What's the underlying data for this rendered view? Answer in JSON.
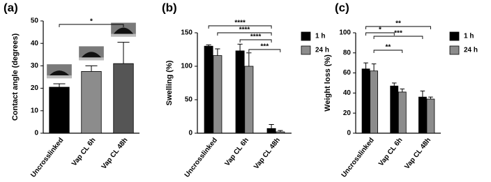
{
  "chart_data": [
    {
      "type": "bar",
      "panel_label": "(a)",
      "y_label": "Contact angle (degrees)",
      "categories": [
        "Uncrosslinked",
        "Vap CL 6h",
        "Vap CL 48h"
      ],
      "series": [
        {
          "values": [
            20.5,
            27.5,
            31
          ],
          "errors": [
            1.5,
            2.5,
            9.5
          ],
          "colors": [
            "#000000",
            "#8c8c8c",
            "#555555"
          ]
        }
      ],
      "ylim": [
        0,
        50
      ],
      "yticks": [
        0,
        10,
        20,
        30,
        40,
        50
      ],
      "annotations": [
        "*"
      ]
    },
    {
      "type": "bar",
      "panel_label": "(b)",
      "y_label": "Swelling (%)",
      "categories": [
        "Uncrosslinked",
        "Vap CL 6h",
        "Vap CL 48h"
      ],
      "series": [
        {
          "name": "1 h",
          "color": "#000000",
          "values": [
            130,
            123,
            7
          ],
          "errors": [
            2,
            10,
            6
          ]
        },
        {
          "name": "24 h",
          "color": "#8c8c8c",
          "values": [
            116,
            100,
            2
          ],
          "errors": [
            10,
            20,
            2
          ]
        }
      ],
      "ylim": [
        0,
        150
      ],
      "yticks": [
        0,
        50,
        100,
        150
      ],
      "annotations": [
        "****",
        "****",
        "****",
        "***"
      ]
    },
    {
      "type": "bar",
      "panel_label": "(c)",
      "y_label": "Weight loss (%)",
      "categories": [
        "Uncrosslinked",
        "Vap CL 6h",
        "Vap CL 48h"
      ],
      "series": [
        {
          "name": "1 h",
          "color": "#000000",
          "values": [
            64,
            47,
            36
          ],
          "errors": [
            6,
            3,
            6
          ]
        },
        {
          "name": "24 h",
          "color": "#8c8c8c",
          "values": [
            62,
            41,
            34
          ],
          "errors": [
            7,
            3,
            2
          ]
        }
      ],
      "ylim": [
        0,
        100
      ],
      "yticks": [
        0,
        20,
        40,
        60,
        80,
        100
      ],
      "annotations": [
        "**",
        "*",
        "***",
        "**"
      ]
    }
  ]
}
